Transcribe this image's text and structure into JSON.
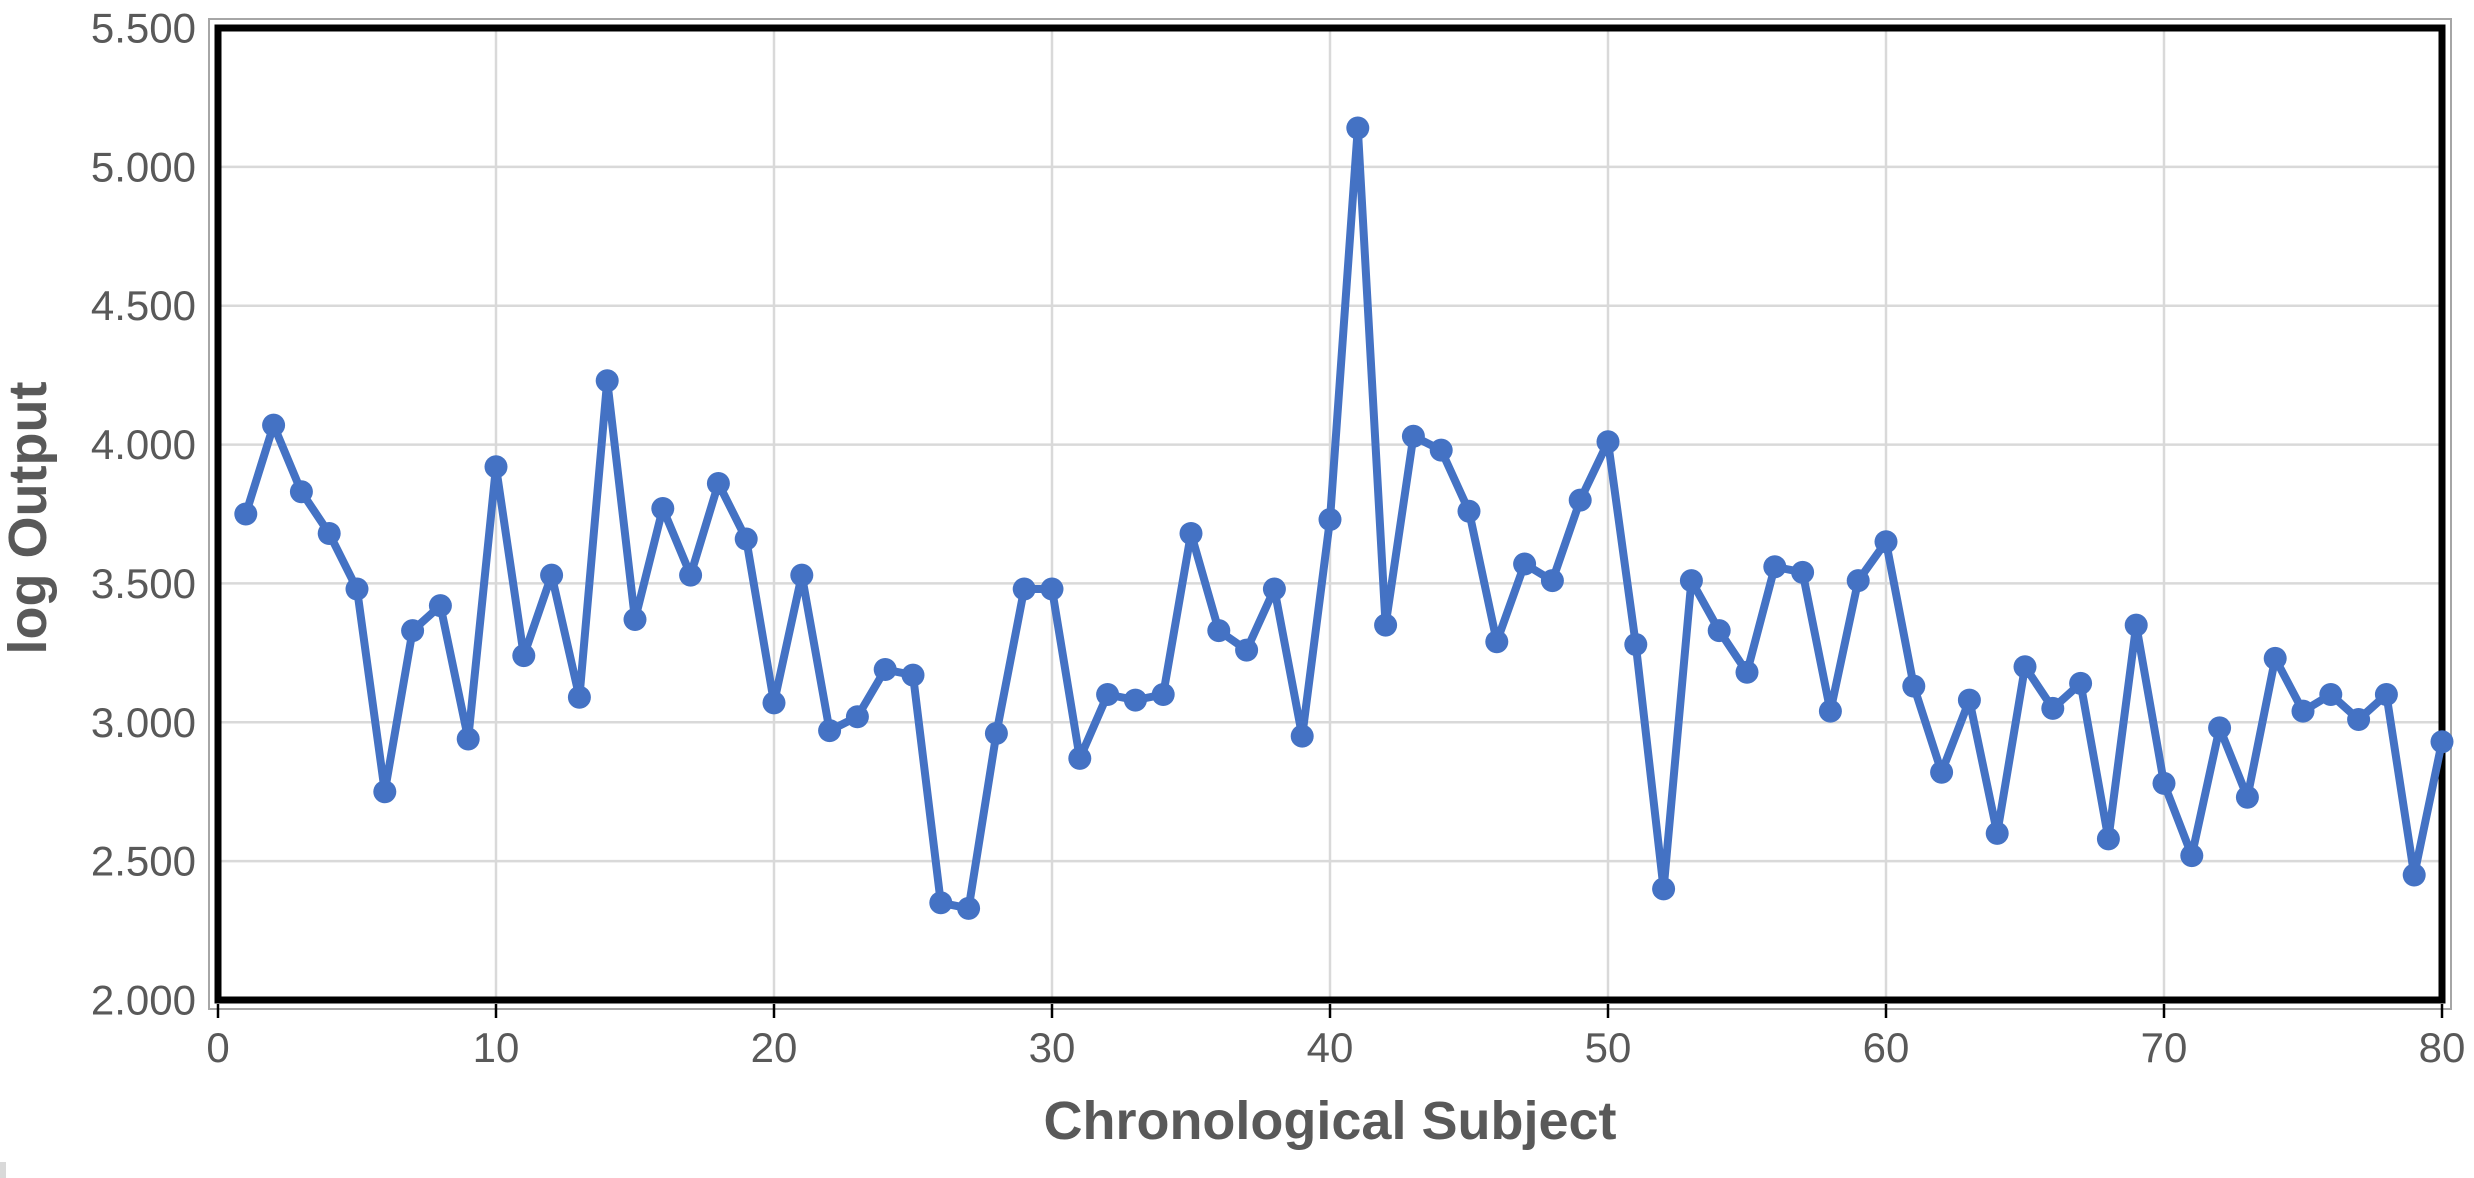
{
  "chart_data": {
    "type": "line",
    "title": "",
    "xlabel": "Chronological Subject",
    "ylabel": "log Output",
    "series": [
      {
        "name": "log Output",
        "x": [
          1,
          2,
          3,
          4,
          5,
          6,
          7,
          8,
          9,
          10,
          11,
          12,
          13,
          14,
          15,
          16,
          17,
          18,
          19,
          20,
          21,
          22,
          23,
          24,
          25,
          26,
          27,
          28,
          29,
          30,
          31,
          32,
          33,
          34,
          35,
          36,
          37,
          38,
          39,
          40,
          41,
          42,
          43,
          44,
          45,
          46,
          47,
          48,
          49,
          50,
          51,
          52,
          53,
          54,
          55,
          56,
          57,
          58,
          59,
          60,
          61,
          62,
          63,
          64,
          65,
          66,
          67,
          68,
          69,
          70,
          71,
          72,
          73,
          74,
          75,
          76,
          77,
          78,
          79,
          80
        ],
        "values": [
          3.75,
          4.07,
          3.83,
          3.68,
          3.48,
          2.75,
          3.33,
          3.42,
          2.94,
          3.92,
          3.24,
          3.53,
          3.09,
          4.23,
          3.37,
          3.77,
          3.53,
          3.86,
          3.66,
          3.07,
          3.53,
          2.97,
          3.02,
          3.19,
          3.17,
          2.35,
          2.33,
          2.96,
          3.48,
          3.48,
          2.87,
          3.1,
          3.08,
          3.1,
          3.68,
          3.33,
          3.26,
          3.48,
          2.95,
          3.73,
          5.14,
          3.35,
          4.03,
          3.98,
          3.76,
          3.29,
          3.57,
          3.51,
          3.8,
          4.01,
          3.28,
          2.4,
          3.51,
          3.33,
          3.18,
          3.56,
          3.54,
          3.04,
          3.51,
          3.65,
          3.13,
          2.82,
          3.08,
          2.6,
          3.2,
          3.05,
          3.14,
          2.58,
          3.35,
          2.78,
          2.52,
          2.98,
          2.73,
          3.23,
          3.04,
          3.1,
          3.01,
          3.1,
          2.45,
          2.93
        ]
      }
    ],
    "xlim": [
      0,
      80
    ],
    "ylim": [
      2.0,
      5.5
    ],
    "x_ticks": [
      "0",
      "10",
      "20",
      "30",
      "40",
      "50",
      "60",
      "70",
      "80"
    ],
    "x_tick_positions": [
      0,
      10,
      20,
      30,
      40,
      50,
      60,
      70,
      80
    ],
    "y_ticks": [
      "2.000",
      "2.500",
      "3.000",
      "3.500",
      "4.000",
      "4.500",
      "5.000",
      "5.500"
    ],
    "y_tick_positions": [
      2.0,
      2.5,
      3.0,
      3.5,
      4.0,
      4.5,
      5.0,
      5.5
    ],
    "grid": true,
    "legend": "none",
    "marker": "circle",
    "colors": {
      "line": "#4472C4",
      "marker": "#4472C4",
      "gridline": "#D9D9D9",
      "plot_border": "#000000",
      "plot_border_inner": "#a6a6a6",
      "tick_label": "#595959",
      "axis_title": "#595959",
      "background": "#ffffff"
    }
  }
}
